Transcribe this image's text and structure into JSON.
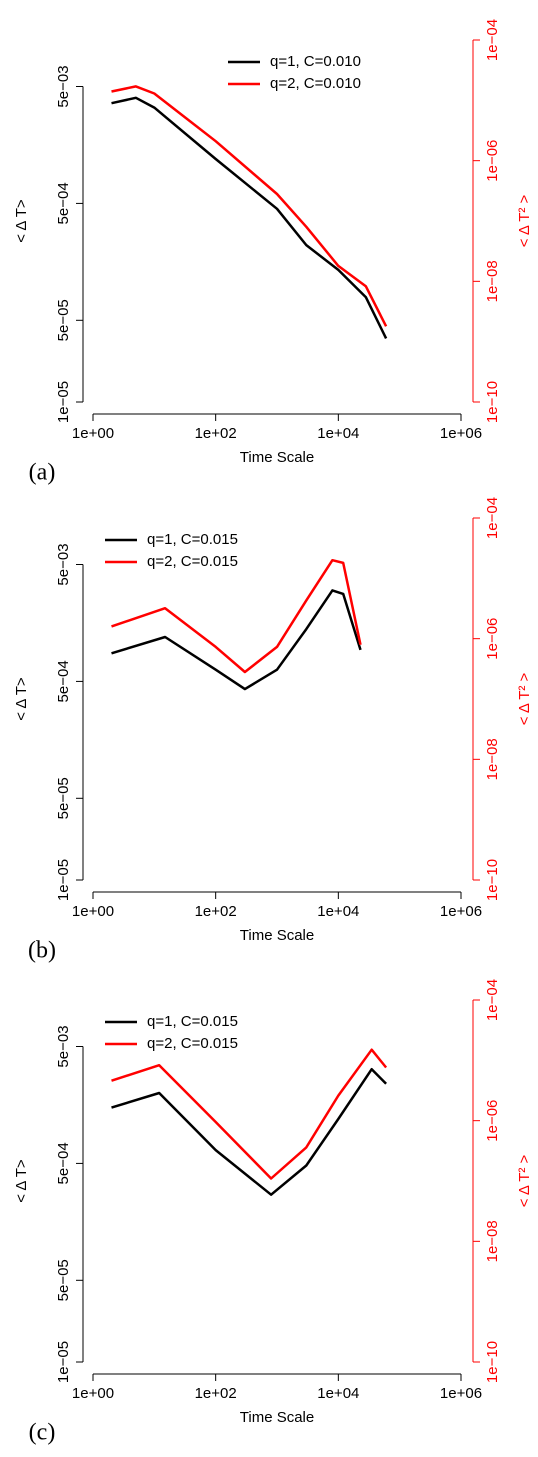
{
  "chart_data": [
    {
      "type": "line",
      "panel_label": "(a)",
      "xlabel": "Time Scale",
      "ylabel": "< Δ T>",
      "y2label": "< Δ T² >",
      "xlog": true,
      "ylog": true,
      "y2log": true,
      "legend": "top",
      "xlim": [
        1,
        1000000
      ],
      "xticks": [
        {
          "value": 1,
          "label": "1e+00"
        },
        {
          "value": 100,
          "label": "1e+02"
        },
        {
          "value": 10000,
          "label": "1e+04"
        },
        {
          "value": 1000000,
          "label": "1e+06"
        }
      ],
      "ylim": [
        1e-05,
        0.0125
      ],
      "yticks": [
        {
          "value": 1e-05,
          "label": "1e−05"
        },
        {
          "value": 5e-05,
          "label": "5e−05"
        },
        {
          "value": 0.0005,
          "label": "5e−04"
        },
        {
          "value": 0.005,
          "label": "5e−03"
        }
      ],
      "y2lim": [
        1e-10,
        0.0001
      ],
      "y2ticks": [
        {
          "value": 1e-10,
          "label": "1e−10"
        },
        {
          "value": 1e-08,
          "label": "1e−08"
        },
        {
          "value": 1e-06,
          "label": "1e−06"
        },
        {
          "value": 0.0001,
          "label": "1e−04"
        }
      ],
      "y2color": "#ff0000",
      "x": [
        2,
        5,
        10,
        100,
        1000,
        3000,
        10000,
        28000,
        60000
      ],
      "series": [
        {
          "name": "q=1, C=0.010",
          "color": "#000000",
          "values": [
            0.0036,
            0.004,
            0.0033,
            0.0012,
            0.00045,
            0.00022,
            0.000135,
            7.9e-05,
            3.5e-05
          ]
        },
        {
          "name": "q=2, C=0.010",
          "color": "#ff0000",
          "axis": "y2",
          "values": [
            1.4e-05,
            1.7e-05,
            1.3e-05,
            2.1e-06,
            2.8e-07,
            8e-08,
            1.8e-08,
            8.3e-09,
            1.8e-09
          ]
        }
      ]
    },
    {
      "type": "line",
      "panel_label": "(b)",
      "xlabel": "Time Scale",
      "ylabel": "< Δ T>",
      "y2label": "< Δ T² >",
      "xlog": true,
      "ylog": true,
      "y2log": true,
      "legend": "topleft",
      "xlim": [
        1,
        1000000
      ],
      "xticks": [
        {
          "value": 1,
          "label": "1e+00"
        },
        {
          "value": 100,
          "label": "1e+02"
        },
        {
          "value": 10000,
          "label": "1e+04"
        },
        {
          "value": 1000000,
          "label": "1e+06"
        }
      ],
      "ylim": [
        1e-05,
        0.0125
      ],
      "yticks": [
        {
          "value": 1e-05,
          "label": "1e−05"
        },
        {
          "value": 5e-05,
          "label": "5e−05"
        },
        {
          "value": 0.0005,
          "label": "5e−04"
        },
        {
          "value": 0.005,
          "label": "5e−03"
        }
      ],
      "y2lim": [
        1e-10,
        0.0001
      ],
      "y2ticks": [
        {
          "value": 1e-10,
          "label": "1e−10"
        },
        {
          "value": 1e-08,
          "label": "1e−08"
        },
        {
          "value": 1e-06,
          "label": "1e−06"
        },
        {
          "value": 0.0001,
          "label": "1e−04"
        }
      ],
      "y2color": "#ff0000",
      "x": [
        2,
        15,
        100,
        300,
        1000,
        3000,
        8000,
        12000,
        23000
      ],
      "series": [
        {
          "name": "q=1, C=0.015",
          "color": "#000000",
          "values": [
            0.00087,
            0.0012,
            0.00063,
            0.00043,
            0.00063,
            0.0014,
            0.003,
            0.0028,
            0.00093
          ]
        },
        {
          "name": "q=2, C=0.015",
          "color": "#ff0000",
          "axis": "y2",
          "values": [
            1.6e-06,
            3.2e-06,
            7.3e-07,
            2.8e-07,
            7.3e-07,
            4.3e-06,
            2e-05,
            1.8e-05,
            7.9e-07
          ]
        }
      ]
    },
    {
      "type": "line",
      "panel_label": "(c)",
      "xlabel": "Time Scale",
      "ylabel": "< Δ T>",
      "y2label": "< Δ T² >",
      "xlog": true,
      "ylog": true,
      "y2log": true,
      "legend": "topleft",
      "xlim": [
        1,
        1000000
      ],
      "xticks": [
        {
          "value": 1,
          "label": "1e+00"
        },
        {
          "value": 100,
          "label": "1e+02"
        },
        {
          "value": 10000,
          "label": "1e+04"
        },
        {
          "value": 1000000,
          "label": "1e+06"
        }
      ],
      "ylim": [
        1e-05,
        0.0125
      ],
      "yticks": [
        {
          "value": 1e-05,
          "label": "1e−05"
        },
        {
          "value": 5e-05,
          "label": "5e−05"
        },
        {
          "value": 0.0005,
          "label": "5e−04"
        },
        {
          "value": 0.005,
          "label": "5e−03"
        }
      ],
      "y2lim": [
        1e-10,
        0.0001
      ],
      "y2ticks": [
        {
          "value": 1e-10,
          "label": "1e−10"
        },
        {
          "value": 1e-08,
          "label": "1e−08"
        },
        {
          "value": 1e-06,
          "label": "1e−06"
        },
        {
          "value": 0.0001,
          "label": "1e−04"
        }
      ],
      "y2color": "#ff0000",
      "x": [
        2,
        12,
        100,
        800,
        3000,
        10000,
        35000,
        60000
      ],
      "series": [
        {
          "name": "q=1, C=0.015",
          "color": "#000000",
          "values": [
            0.0015,
            0.002,
            0.00065,
            0.00027,
            0.00048,
            0.0012,
            0.0032,
            0.0024
          ]
        },
        {
          "name": "q=2, C=0.015",
          "color": "#ff0000",
          "axis": "y2",
          "values": [
            4.6e-06,
            8.3e-06,
            9.5e-07,
            1.1e-07,
            3.6e-07,
            2.6e-06,
            1.5e-05,
            7.6e-06
          ]
        }
      ]
    }
  ]
}
